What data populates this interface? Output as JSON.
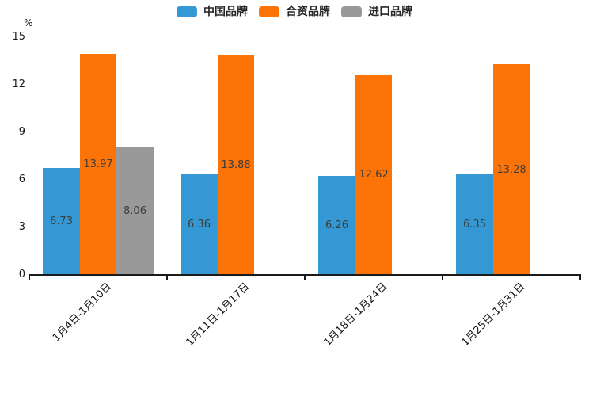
{
  "chart_data": {
    "type": "bar",
    "title": "",
    "ylabel": "%",
    "xlabel": "",
    "ylim": [
      0,
      15
    ],
    "yticks": [
      0,
      3,
      6,
      9,
      12,
      15
    ],
    "grid": false,
    "legend_position": "top",
    "x_tick_rotation": 45,
    "value_labels": "inside-center",
    "value_label_decimals": 2,
    "categories": [
      "1月4日-1月10日",
      "1月11日-1月17日",
      "1月18日-1月24日",
      "1月25日-1月31日"
    ],
    "series": [
      {
        "key": "china-brand",
        "name": "中国品牌",
        "color": "#3398d3",
        "values": [
          6.73,
          6.36,
          6.26,
          6.35
        ]
      },
      {
        "key": "joint-venture-brand",
        "name": "合资品牌",
        "color": "#fc7307",
        "values": [
          13.97,
          13.88,
          12.62,
          13.28
        ]
      },
      {
        "key": "import-brand",
        "name": "进口品牌",
        "color": "#999999",
        "values": [
          8.06,
          null,
          null,
          null
        ]
      }
    ],
    "colors": {
      "axis": "#1a1a1a",
      "tick_label": "#1a1a1a",
      "value_label": "#3d3d3d",
      "background": "#ffffff"
    }
  }
}
